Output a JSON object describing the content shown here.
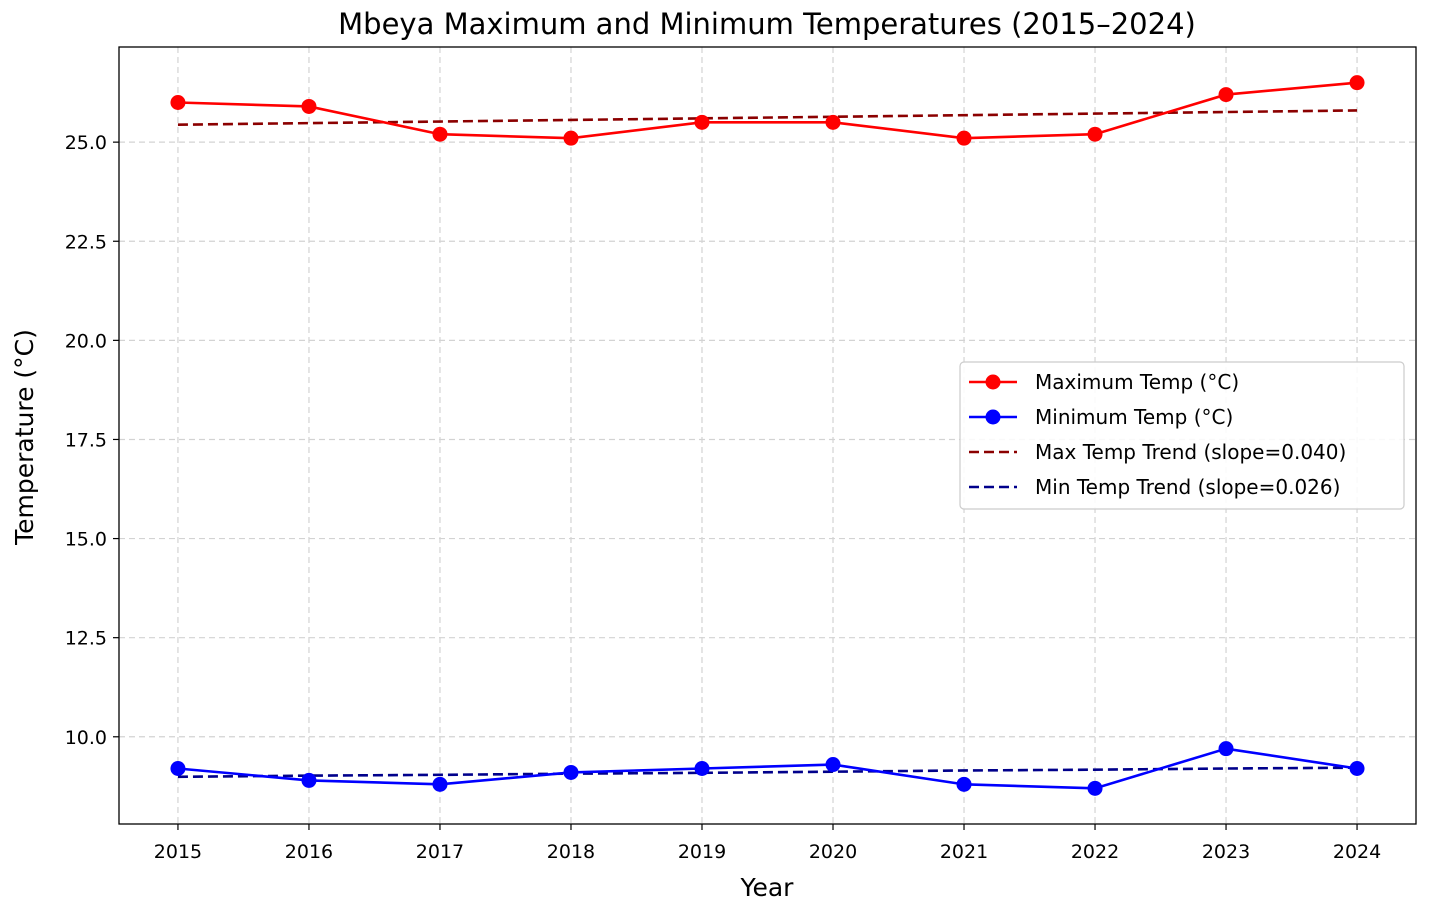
{
  "chart_data": {
    "type": "line",
    "title": "Mbeya Maximum and Minimum Temperatures (2015–2024)",
    "xlabel": "Year",
    "ylabel": "Temperature (°C)",
    "x": [
      2015,
      2016,
      2017,
      2018,
      2019,
      2020,
      2021,
      2022,
      2023,
      2024
    ],
    "xticks": [
      "2015",
      "2016",
      "2017",
      "2018",
      "2019",
      "2020",
      "2021",
      "2022",
      "2023",
      "2024"
    ],
    "yticks": [
      "10.0",
      "12.5",
      "15.0",
      "17.5",
      "20.0",
      "22.5",
      "25.0"
    ],
    "ytick_values": [
      10.0,
      12.5,
      15.0,
      17.5,
      20.0,
      22.5,
      25.0
    ],
    "ylim": [
      7.8,
      27.4
    ],
    "xlim": [
      2014.55,
      2024.45
    ],
    "grid": true,
    "legend_position": "center-right",
    "series": [
      {
        "name": "Maximum Temp (°C)",
        "color": "#ff0000",
        "style": "solid-marker",
        "values": [
          26.0,
          25.9,
          25.2,
          25.1,
          25.5,
          25.5,
          25.1,
          25.2,
          26.2,
          26.5
        ]
      },
      {
        "name": "Minimum Temp (°C)",
        "color": "#0000ff",
        "style": "solid-marker",
        "values": [
          9.2,
          8.9,
          8.8,
          9.1,
          9.2,
          9.3,
          8.8,
          8.7,
          9.7,
          9.2
        ]
      },
      {
        "name": "Max Temp Trend (slope=0.040)",
        "color": "#8b0000",
        "style": "dashed",
        "values": [
          25.44,
          25.48,
          25.52,
          25.56,
          25.6,
          25.64,
          25.68,
          25.72,
          25.76,
          25.8
        ]
      },
      {
        "name": "Min Temp Trend (slope=0.026)",
        "color": "#00008b",
        "style": "dashed",
        "values": [
          8.99,
          9.02,
          9.04,
          9.07,
          9.09,
          9.12,
          9.15,
          9.17,
          9.2,
          9.22
        ]
      }
    ]
  }
}
